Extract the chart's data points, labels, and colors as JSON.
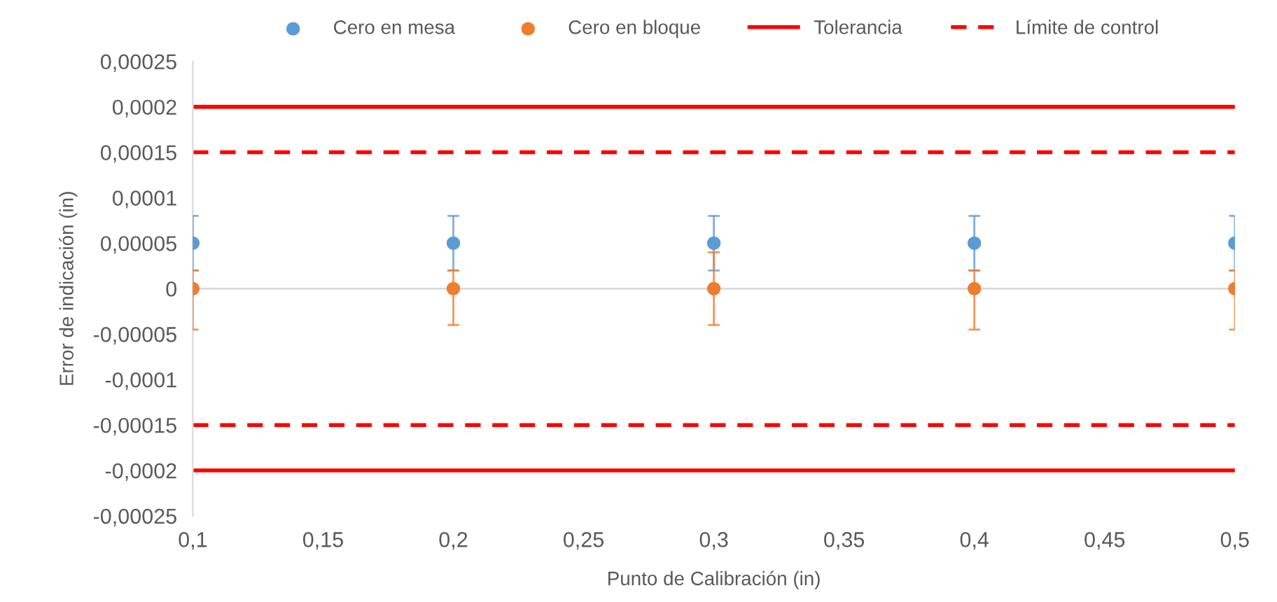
{
  "chart_data": {
    "type": "scatter",
    "xlabel": "Punto de Calibración (in)",
    "ylabel": "Error de indicación (in)",
    "x": [
      0.1,
      0.2,
      0.3,
      0.4,
      0.5
    ],
    "series": [
      {
        "name": "Cero en mesa",
        "color": "#5b9bd5",
        "values": [
          5e-05,
          5e-05,
          5e-05,
          5e-05,
          5e-05
        ],
        "errors": [
          3e-05,
          3e-05,
          3e-05,
          3e-05,
          3e-05
        ]
      },
      {
        "name": "Cero en bloque",
        "color": "#ed7d31",
        "values": [
          0,
          0,
          0,
          0,
          0
        ],
        "errors": [
          [
            -4.5e-05,
            2e-05
          ],
          [
            -4e-05,
            2e-05
          ],
          [
            -4e-05,
            4e-05
          ],
          [
            -4.5e-05,
            2e-05
          ],
          [
            -4.5e-05,
            2e-05
          ]
        ]
      }
    ],
    "ref_lines": [
      {
        "axis": "y",
        "value": 0,
        "color": "#d9d9d9"
      },
      {
        "axis": "y",
        "value": 0.0002,
        "label": "Tolerancia",
        "color": "#ff0000",
        "line_style": "solid"
      },
      {
        "axis": "y",
        "value": -0.0002,
        "color": "#ff0000",
        "line_style": "solid"
      },
      {
        "axis": "y",
        "value": 0.00015,
        "label": "Límite de control",
        "color": "#ff0000",
        "line_style": "dashed"
      },
      {
        "axis": "y",
        "value": -0.00015,
        "color": "#ff0000",
        "line_style": "dashed"
      }
    ],
    "marker": "circle",
    "xlim": [
      0.1,
      0.5
    ],
    "xticks": [
      {
        "value": 0.1,
        "label": "0,1"
      },
      {
        "value": 0.15,
        "label": "0,15"
      },
      {
        "value": 0.2,
        "label": "0,2"
      },
      {
        "value": 0.25,
        "label": "0,25"
      },
      {
        "value": 0.3,
        "label": "0,3"
      },
      {
        "value": 0.35,
        "label": "0,35"
      },
      {
        "value": 0.4,
        "label": "0,4"
      },
      {
        "value": 0.45,
        "label": "0,45"
      },
      {
        "value": 0.5,
        "label": "0,5"
      }
    ],
    "ylim": [
      -0.00025,
      0.00025
    ],
    "yticks": [
      {
        "value": -0.00025,
        "label": "-0,00025"
      },
      {
        "value": -0.0002,
        "label": "-0,0002"
      },
      {
        "value": -0.00015,
        "label": "-0,00015"
      },
      {
        "value": -0.0001,
        "label": "-0,0001"
      },
      {
        "value": -5e-05,
        "label": "-0,00005"
      },
      0,
      {
        "value": 5e-05,
        "label": "0,00005"
      },
      {
        "value": 0.0001,
        "label": "0,0001"
      },
      {
        "value": 0.00015,
        "label": "0,00015"
      },
      {
        "value": 0.0002,
        "label": "0,0002"
      },
      {
        "value": 0.00025,
        "label": "0,00025"
      }
    ],
    "legend": "top"
  }
}
